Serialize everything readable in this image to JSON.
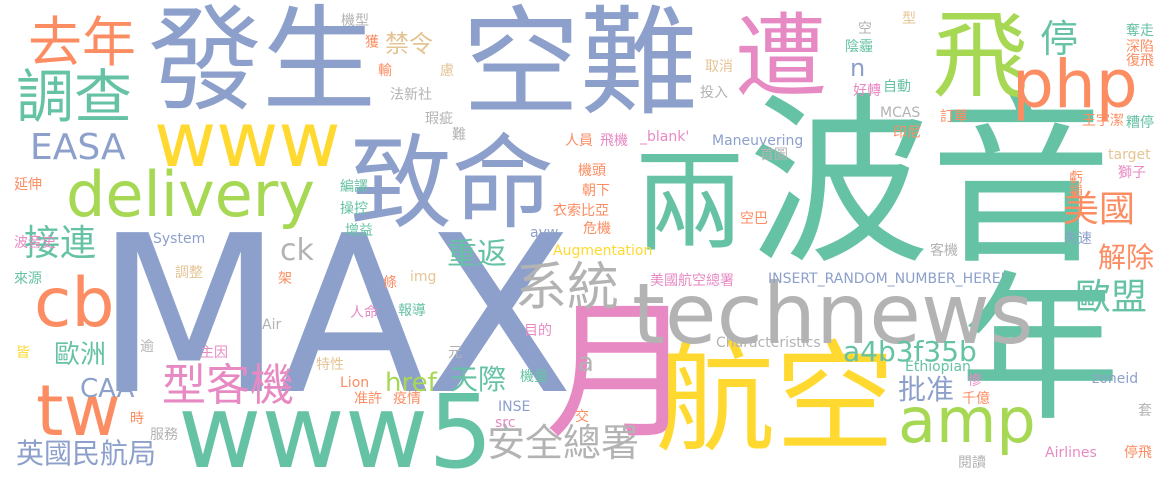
{
  "palette": {
    "blue": "#8DA0CB",
    "green": "#66C2A5",
    "orange": "#FC8D62",
    "pink": "#E78AC3",
    "lime": "#A6D854",
    "yellow": "#FFD92F",
    "tan": "#E5C494",
    "gray": "#B3B3B3"
  },
  "words": {
    "max": "MAX",
    "bo_yin": "波音",
    "kong_nan": "空難",
    "fa_sheng": "發生",
    "hang_kong": "航空",
    "nian": "年",
    "yue": "月",
    "www5": "www5",
    "technews": "technews",
    "zhi_ming": "致命",
    "liang": "兩",
    "fei": "飛",
    "zao": "遭",
    "php": "php",
    "www": "www",
    "delivery": "delivery",
    "qu_nian": "去年",
    "diao_cha": "調查",
    "tw": "tw",
    "cb": "cb",
    "amp": "amp",
    "xi_tong": "系統",
    "xing_ke_ji": "型客機",
    "an_quan_zong_shu": "安全總署",
    "easa": "EASA",
    "jie_lian": "接連",
    "mei_guo": "美國",
    "ou_meng": "歐盟",
    "ting": "停",
    "a4b3f35b": "a4b3f35b",
    "ck": "ck",
    "zhong_fan": "重返",
    "tian_ji": "天際",
    "href": "href",
    "pi_zhun": "批准",
    "jie_chu": "解除",
    "ou_zhou": "歐洲",
    "caa": "CAA",
    "ying_guo": "英國民航局",
    "n": "n",
    "a": "a",
    "jin_ling": "禁令",
    "ji_xing": "機型",
    "huo": "獲",
    "shu": "輸",
    "lv": "慮",
    "fa_xin_she": "法新社",
    "xia_ci": "瑕疵",
    "nan": "難",
    "ren_yuan": "人員",
    "fei_ji": "飛機",
    "blank": "_blank'",
    "maneuvering": "Maneuvering",
    "mcas": "MCAS",
    "ding_dan": "訂單",
    "wang": "王宇潔",
    "cao_ting": "糟停",
    "duo_zou": "奪走",
    "shen_xian": "深陷",
    "fu_fei": "復飛",
    "qu_xiao": "取消",
    "tou_ru": "投入",
    "yin_mai": "陰霾",
    "zi_dong": "自動",
    "hao_zhuan": "好轉",
    "yin_ni": "印尼",
    "kong": "空",
    "xing": "型",
    "kui_sun": "虧損",
    "target": "target",
    "shi_zi": "獅子",
    "shou_tu": "首圖",
    "ji_tou": "機頭",
    "chao_xia": "朝下",
    "yi_suo": "衣索比亞",
    "kong_ba": "空巴",
    "wei_ji": "危機",
    "aug": "Augmentation",
    "avw": "avw",
    "bian_yi": "編譯",
    "cao_kong": "操控",
    "zeng_yi": "增益",
    "system": "System",
    "yan_shen": "延伸",
    "bo_yin_shi": "波音史",
    "lai_yuan": "來源",
    "diao_zheng": "調整",
    "jia": "架",
    "tiao": "條",
    "img": "img",
    "insert": "INSERT_RANDOM_NUMBER_HERE'",
    "mei_guo_hang": "美國航空總署",
    "ke_ji": "客機",
    "shi_su": "失速",
    "air": "Air",
    "bao_dao": "報導",
    "ren_ming": "人命",
    "mu_de": "目的",
    "yu": "逾",
    "jie": "皆",
    "zhu_yin": "主因",
    "yuan": "元",
    "characteristics": "Characteristics",
    "te_xing": "特性",
    "lion": "Lion",
    "zhun_xu": "准許",
    "yi_qing": "疫情",
    "ji_liang": "機量",
    "ethiopian": "Ethiopian",
    "can": "慘",
    "qian_yi": "千億",
    "zoneid": "zoneid",
    "shi": "時",
    "fu_wu": "服務",
    "inse": "INSE",
    "jiao": "交",
    "src": "src",
    "airlines": "Airlines",
    "ting_fei": "停飛",
    "yue_du": "閱讀",
    "tao": "套"
  }
}
